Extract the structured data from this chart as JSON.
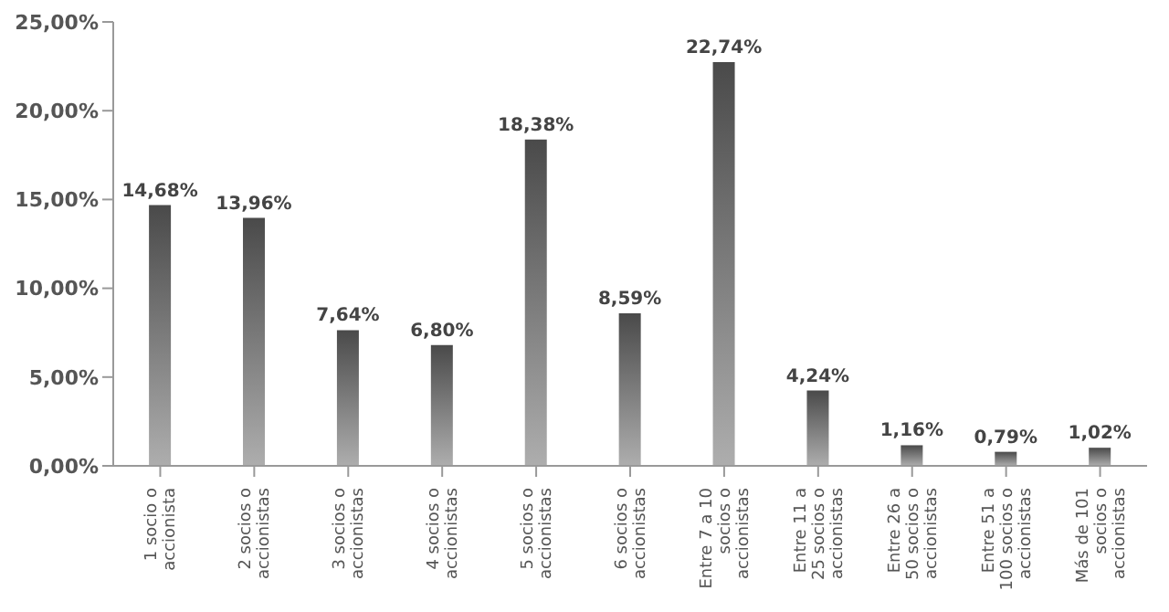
{
  "chart_data": {
    "type": "bar",
    "categories": [
      "1 socio o accionista",
      "2 socios o accionistas",
      "3 socios o accionistas",
      "4 socios o accionistas",
      "5 socios o accionistas",
      "6 socios o accionistas",
      "Entre 7 a 10 socios o accionistas",
      "Entre 11 a 25 socios o accionistas",
      "Entre 26 a 50 socios o accionistas",
      "Entre 51 a 100 socios o accionistas",
      "Más de 101 socios o accionistas"
    ],
    "values": [
      14.68,
      13.96,
      7.64,
      6.8,
      18.38,
      8.59,
      22.74,
      4.24,
      1.16,
      0.79,
      1.02
    ],
    "value_labels": [
      "14,68%",
      "13,96%",
      "7,64%",
      "6,80%",
      "18,38%",
      "8,59%",
      "22,74%",
      "4,24%",
      "1,16%",
      "0,79%",
      "1,02%"
    ],
    "color": "#4a4a4a",
    "ylim": [
      0,
      25
    ],
    "yticks": [
      {
        "value": 0,
        "label": "0,00%"
      },
      {
        "value": 5,
        "label": "5,00%"
      },
      {
        "value": 10,
        "label": "10,00%"
      },
      {
        "value": 15,
        "label": "15,00%"
      },
      {
        "value": 20,
        "label": "20,00%"
      },
      {
        "value": 25,
        "label": "25,00%"
      }
    ],
    "grid": false,
    "legend": false
  }
}
